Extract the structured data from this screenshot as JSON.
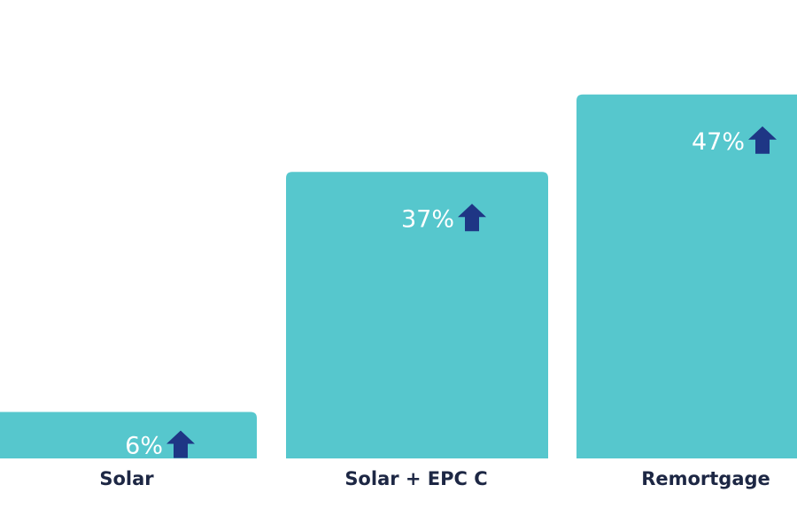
{
  "colors": {
    "bar": "#56c7cd",
    "arrow": "#1e3685",
    "value_text": "#ffffff",
    "category_text": "#1d2744",
    "background": "#ffffff"
  },
  "chart_data": {
    "type": "bar",
    "title": "",
    "xlabel": "",
    "ylabel": "",
    "categories": [
      "Solar",
      "Solar + EPC C",
      "Remortgage"
    ],
    "values": [
      6,
      37,
      47
    ],
    "value_labels": [
      "6%",
      "37%",
      "47%"
    ],
    "ylim": [
      0,
      55
    ],
    "grid": false,
    "legend": "none",
    "annotation_icon": "arrow-up-icon"
  }
}
